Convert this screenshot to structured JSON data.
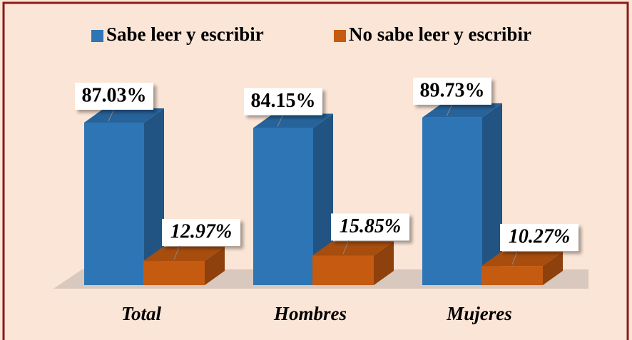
{
  "chart_data": {
    "type": "bar3d",
    "categories": [
      "Total",
      "Hombres",
      "Mujeres"
    ],
    "series": [
      {
        "name": "Sabe leer y escribir",
        "color": "#2E75B6",
        "values": [
          87.03,
          84.15,
          89.73
        ],
        "value_labels": [
          "87.03%",
          "84.15%",
          "89.73%"
        ]
      },
      {
        "name": "No sabe leer y escribir",
        "color": "#C55A11",
        "values": [
          12.97,
          15.85,
          10.27
        ],
        "value_labels": [
          "12.97%",
          "15.85%",
          "10.27%"
        ]
      }
    ],
    "legend": "top"
  }
}
